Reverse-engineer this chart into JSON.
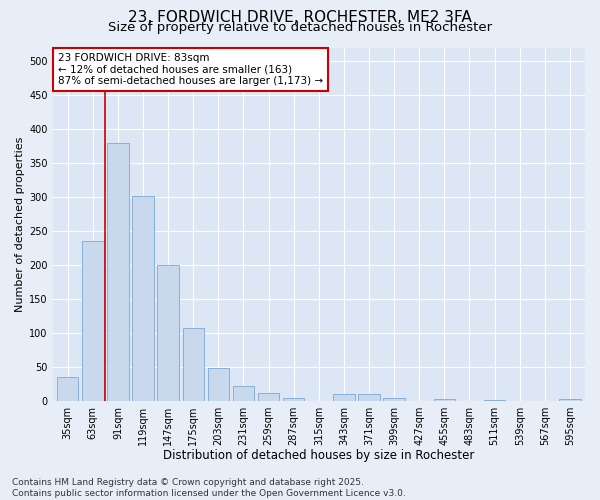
{
  "title1": "23, FORDWICH DRIVE, ROCHESTER, ME2 3FA",
  "title2": "Size of property relative to detached houses in Rochester",
  "xlabel": "Distribution of detached houses by size in Rochester",
  "ylabel": "Number of detached properties",
  "categories": [
    "35sqm",
    "63sqm",
    "91sqm",
    "119sqm",
    "147sqm",
    "175sqm",
    "203sqm",
    "231sqm",
    "259sqm",
    "287sqm",
    "315sqm",
    "343sqm",
    "371sqm",
    "399sqm",
    "427sqm",
    "455sqm",
    "483sqm",
    "511sqm",
    "539sqm",
    "567sqm",
    "595sqm"
  ],
  "values": [
    35,
    235,
    380,
    302,
    200,
    107,
    48,
    22,
    12,
    5,
    0,
    10,
    10,
    4,
    0,
    3,
    0,
    2,
    0,
    0,
    3
  ],
  "bar_color": "#c8d9ee",
  "bar_edge_color": "#7aa8d4",
  "vline_x": 1.5,
  "vline_color": "#cc0000",
  "annotation_title": "23 FORDWICH DRIVE: 83sqm",
  "annotation_line2": "← 12% of detached houses are smaller (163)",
  "annotation_line3": "87% of semi-detached houses are larger (1,173) →",
  "annotation_box_color": "#cc0000",
  "ylim": [
    0,
    520
  ],
  "yticks": [
    0,
    50,
    100,
    150,
    200,
    250,
    300,
    350,
    400,
    450,
    500
  ],
  "bg_color": "#e8eef8",
  "plot_bg_color": "#dde6f4",
  "footer_line1": "Contains HM Land Registry data © Crown copyright and database right 2025.",
  "footer_line2": "Contains public sector information licensed under the Open Government Licence v3.0.",
  "title1_fontsize": 11,
  "title2_fontsize": 9.5,
  "xlabel_fontsize": 8.5,
  "ylabel_fontsize": 8,
  "tick_fontsize": 7,
  "footer_fontsize": 6.5,
  "annotation_fontsize": 7.5
}
